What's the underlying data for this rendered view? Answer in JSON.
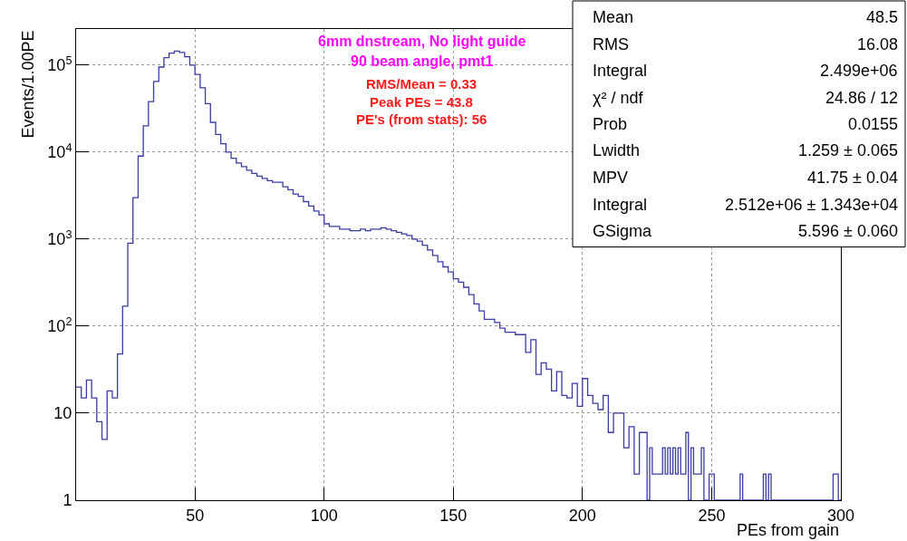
{
  "chart_data": {
    "type": "histogram",
    "xlabel": "PEs from gain",
    "ylabel": "Events/1.00PE",
    "bins": [
      4,
      6,
      8,
      10,
      12,
      14,
      16,
      18,
      20,
      22,
      24,
      26,
      28,
      30,
      32,
      34,
      36,
      38,
      40,
      42,
      44,
      46,
      48,
      50,
      52,
      54,
      56,
      58,
      60,
      62,
      64,
      66,
      68,
      70,
      72,
      74,
      76,
      78,
      80,
      82,
      84,
      86,
      88,
      90,
      92,
      94,
      96,
      98,
      100,
      102,
      104,
      106,
      108,
      110,
      112,
      114,
      116,
      118,
      120,
      122,
      124,
      126,
      128,
      130,
      132,
      134,
      136,
      138,
      140,
      142,
      144,
      146,
      148,
      150,
      152,
      154,
      156,
      158,
      160,
      162,
      164,
      166,
      168,
      170,
      172,
      174,
      176,
      178,
      180,
      182,
      184,
      186,
      188,
      190,
      192,
      194,
      196,
      198,
      200,
      202,
      204,
      206,
      208,
      210,
      212,
      214,
      216,
      218,
      220,
      221,
      222,
      223,
      224,
      225,
      226,
      227,
      228,
      229,
      230,
      231,
      232,
      233,
      234,
      235,
      236,
      237,
      238,
      239,
      240,
      241,
      242,
      243,
      244,
      245,
      246,
      247,
      248,
      249,
      250,
      251,
      252,
      253,
      254,
      255,
      256,
      257,
      258,
      259,
      260,
      261,
      262,
      263,
      264,
      265,
      266,
      267,
      268,
      269,
      270,
      271,
      272,
      273,
      274,
      275,
      276,
      277,
      278,
      279,
      280,
      281,
      282,
      283,
      284,
      285,
      286,
      287,
      288,
      289,
      290,
      291,
      292,
      293,
      294,
      295,
      296,
      297,
      298,
      299,
      300
    ],
    "values": [
      20,
      15,
      24,
      15,
      8,
      5,
      18,
      15,
      48,
      170,
      900,
      3000,
      9000,
      20000,
      38000,
      65000,
      95000,
      122000,
      137000,
      145000,
      140000,
      125000,
      100000,
      78000,
      55000,
      36000,
      22000,
      16000,
      12500,
      10000,
      8500,
      7500,
      6800,
      6200,
      5700,
      5300,
      5000,
      4700,
      4500,
      4500,
      4000,
      3700,
      3300,
      3100,
      2700,
      2400,
      2100,
      1900,
      1500,
      1400,
      1400,
      1300,
      1300,
      1250,
      1250,
      1300,
      1250,
      1300,
      1300,
      1350,
      1300,
      1250,
      1200,
      1150,
      1100,
      1000,
      950,
      850,
      750,
      650,
      550,
      480,
      420,
      350,
      320,
      280,
      230,
      180,
      150,
      120,
      120,
      110,
      95,
      85,
      85,
      80,
      80,
      50,
      70,
      28,
      38,
      32,
      18,
      30,
      16,
      15,
      22,
      12,
      25,
      16,
      13,
      11,
      16,
      6,
      10,
      10,
      4,
      7,
      2,
      2,
      6,
      6,
      6,
      1,
      4,
      2,
      2,
      2,
      2,
      4,
      2,
      4,
      2,
      4,
      2,
      4,
      2,
      2,
      6,
      1,
      4,
      2,
      2,
      2,
      4,
      1,
      1,
      2,
      2,
      1,
      1,
      1,
      1,
      1,
      1,
      1,
      1,
      1,
      1,
      2,
      1,
      1,
      1,
      1,
      1,
      1,
      1,
      1,
      2,
      1,
      2,
      1,
      1,
      1,
      1,
      1,
      1,
      1,
      1,
      1,
      1,
      1,
      1,
      1,
      1,
      1,
      1,
      1,
      1,
      1,
      1,
      1,
      1,
      1,
      1,
      2,
      2,
      1
    ],
    "color": "#3b3ba6",
    "log": "y",
    "xlim": [
      4,
      300
    ],
    "xticks": [
      50,
      100,
      150,
      200,
      250,
      300
    ],
    "ylim": [
      1,
      260000
    ],
    "yticks": [
      1,
      10,
      {
        "value": 100,
        "label": "10$^{2}$"
      },
      {
        "value": 1000,
        "label": "10$^{3}$"
      },
      {
        "value": 10000,
        "label": "10$^{4}$"
      },
      {
        "value": 100000,
        "label": "10$^{5}$"
      }
    ],
    "grid": true,
    "annotations": [
      "6mm dnstream, No light guide",
      "90 beam angle, pmt1",
      "RMS/Mean = 0.33",
      "Peak PEs = 43.8",
      "PE's (from stats): 56",
      "Mean\t48.5",
      "RMS\t16.08",
      "Integral\t2.499e+06",
      "χ² / ndf\t24.86 / 12",
      "Prob\t0.0155",
      "Lwidth\t1.259 ± 0.065",
      "MPV\t41.75 ± 0.04",
      "Integral\t2.512e+06 ± 1.343e+04",
      "GSigma\t5.596 ± 0.060"
    ]
  }
}
